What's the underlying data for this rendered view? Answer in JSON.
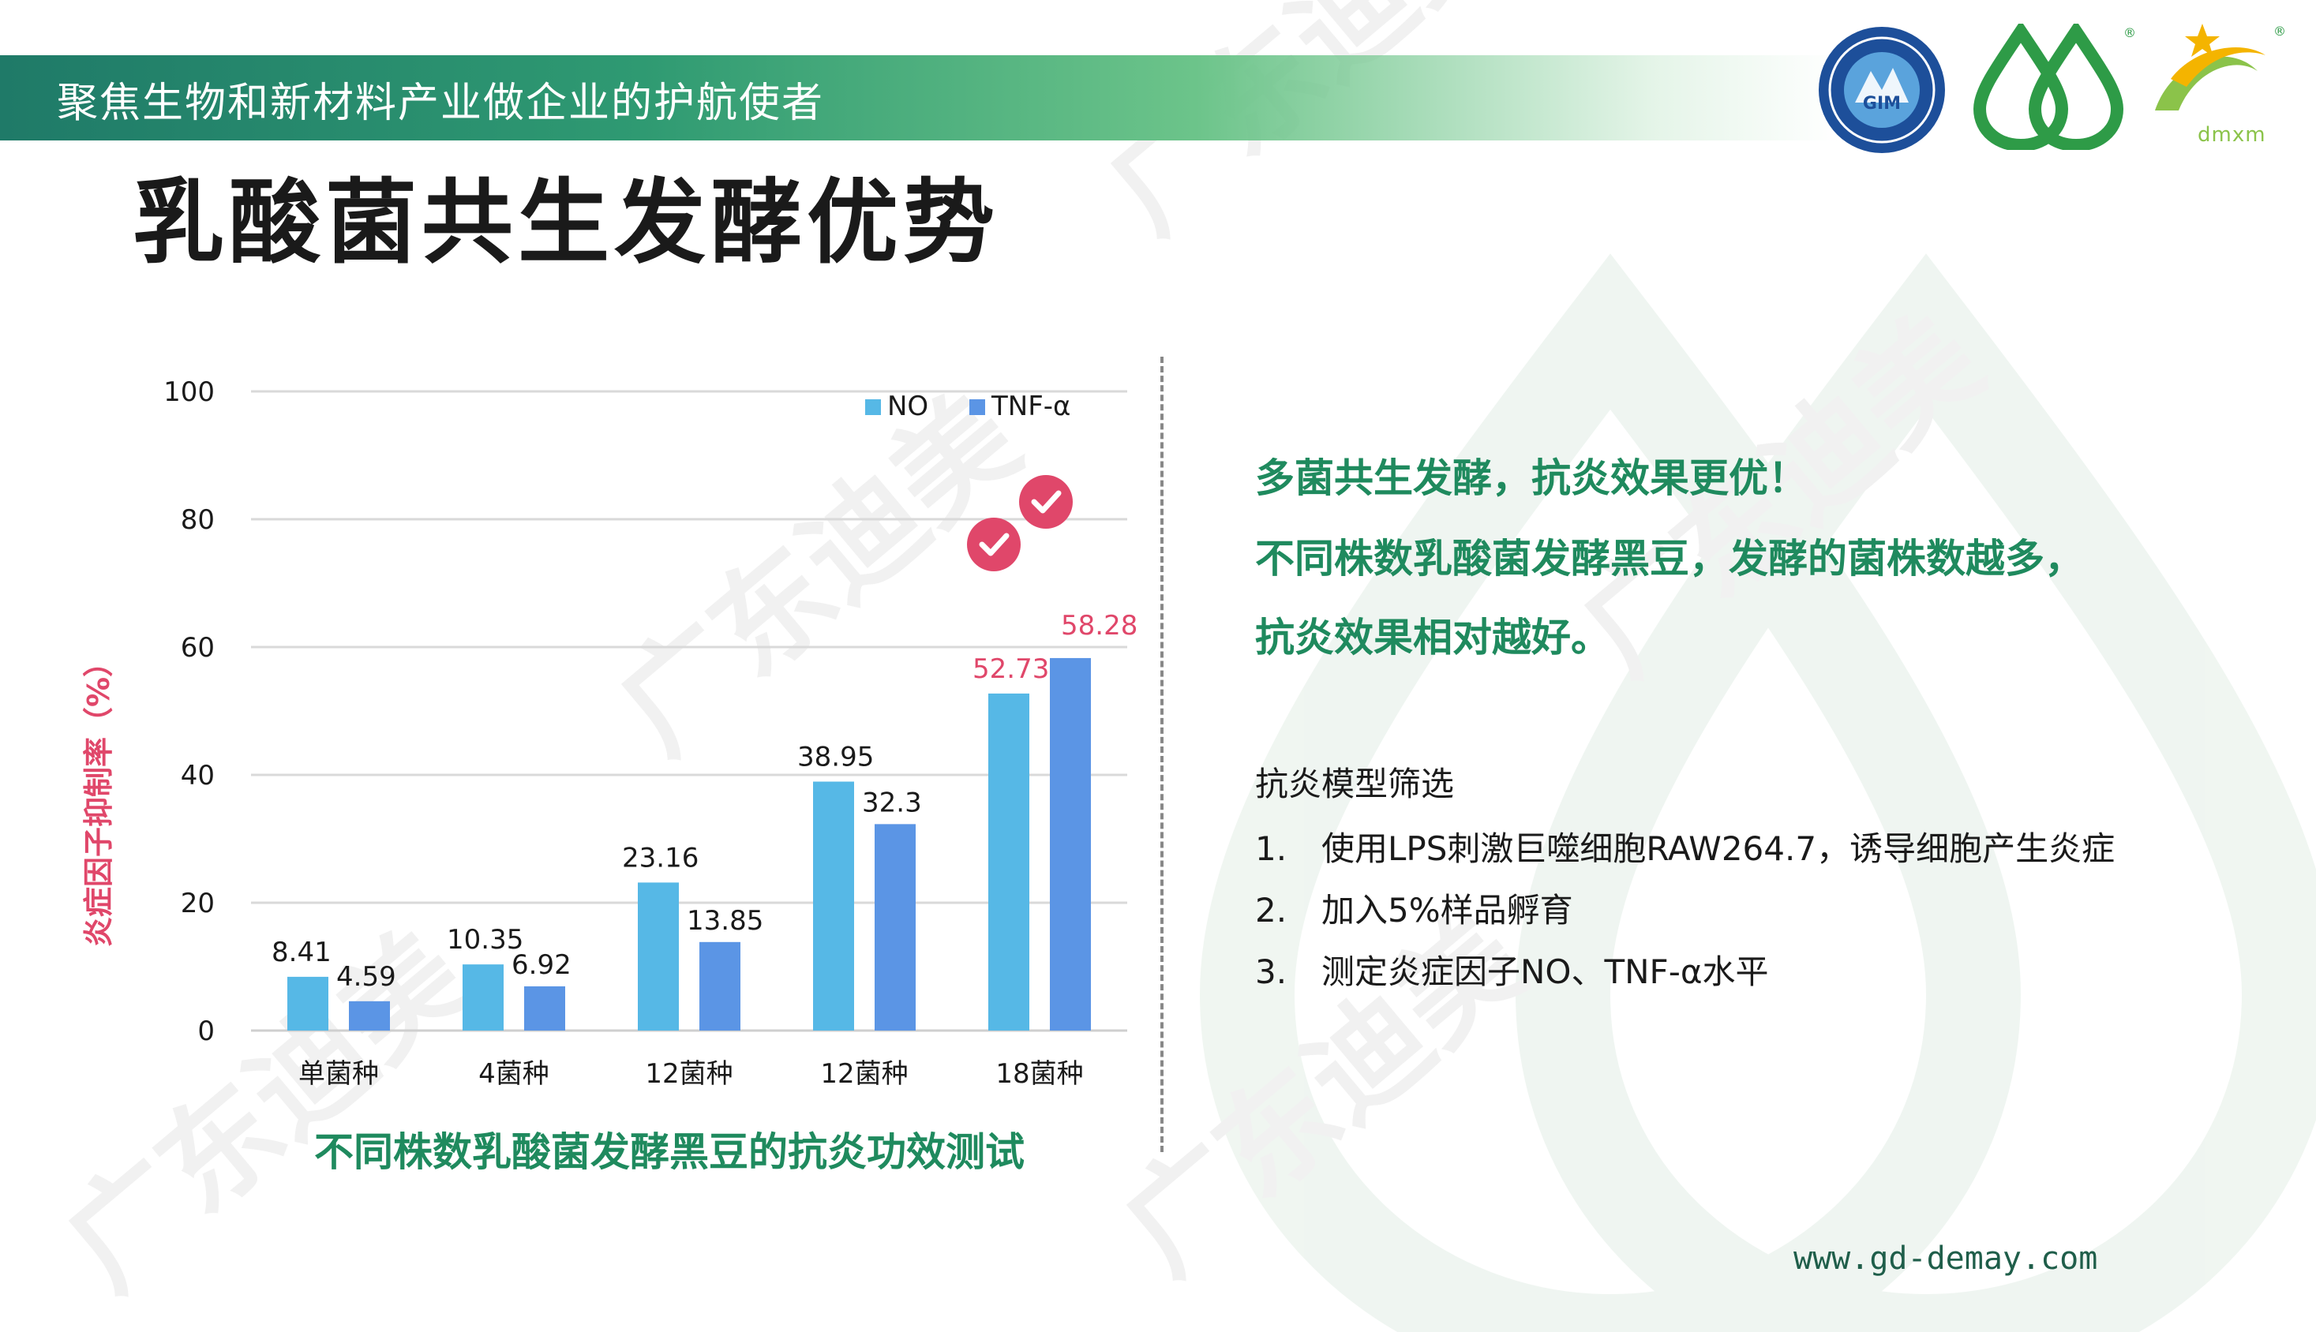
{
  "header": {
    "slogan": "聚焦生物和新材料产业做企业的护航使者",
    "title": "乳酸菌共生发酵优势"
  },
  "logos": [
    {
      "name": "institute-seal-logo"
    },
    {
      "name": "demay-drop-logo",
      "mark": "®"
    },
    {
      "name": "dmxm-logo",
      "text": "dmxm",
      "mark": "®"
    }
  ],
  "watermark": {
    "text": "广东迪美"
  },
  "chart_data": {
    "type": "bar",
    "categories": [
      "单菌种",
      "4菌种",
      "12菌种",
      "12菌种",
      "18菌种"
    ],
    "series": [
      {
        "name": "NO",
        "values": [
          8.41,
          10.35,
          23.16,
          38.95,
          52.73
        ],
        "labels": [
          "8.41",
          "10.35",
          "23.16",
          "38.95",
          "52.73"
        ],
        "color": "#56b8e6"
      },
      {
        "name": "TNF-α",
        "values": [
          4.59,
          6.92,
          13.85,
          32.3,
          58.28
        ],
        "labels": [
          "4.59",
          "6.92",
          "13.85",
          "32.3",
          "58.28"
        ],
        "color": "#5b95e5"
      }
    ],
    "ylim": [
      0,
      100
    ],
    "yticks": [
      0,
      20,
      40,
      60,
      80,
      100
    ],
    "ylabel": "炎症因子抑制率（%）",
    "xlabel": "",
    "legend": "top-right",
    "grid": true,
    "highlight_color": "#e0476a",
    "highlight_category_index": 4,
    "caption": "不同株数乳酸菌发酵黑豆的抗炎功效测试"
  },
  "conclusion": {
    "lines": [
      "多菌共生发酵，抗炎效果更优！",
      "不同株数乳酸菌发酵黑豆，发酵的菌株数越多，",
      "抗炎效果相对越好。"
    ]
  },
  "model": {
    "title": "抗炎模型筛选",
    "items": [
      {
        "num": "1.",
        "text": "使用LPS刺激巨噬细胞RAW264.7，诱导细胞产生炎症"
      },
      {
        "num": "2.",
        "text": "加入5%样品孵育"
      },
      {
        "num": "3.",
        "text": "测定炎症因子NO、TNF-α水平"
      }
    ]
  },
  "footer": {
    "website": "www.gd-demay.com"
  },
  "colors": {
    "brand_green": "#1f8a5e",
    "header_dark": "#1f7a68",
    "accent_pink": "#e0476a"
  }
}
